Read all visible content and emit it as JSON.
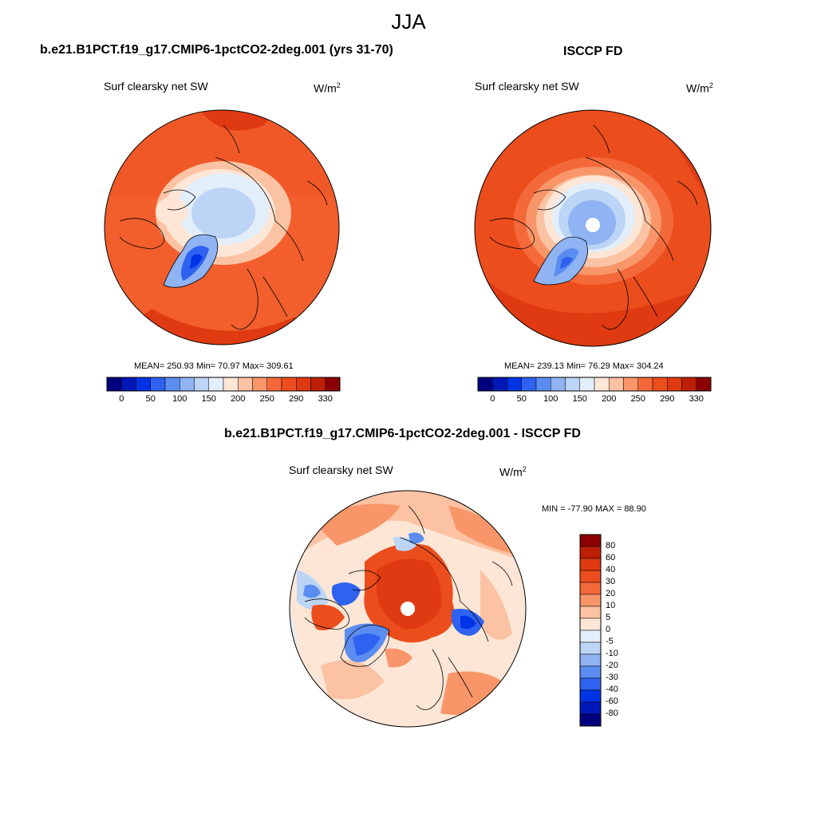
{
  "figure": {
    "title": "JJA",
    "units_base": "W/m",
    "units_exp": "2"
  },
  "colors": {
    "abs_scale": [
      "#00007e",
      "#0018b8",
      "#0033e6",
      "#2f62f0",
      "#5b8df0",
      "#8fb3f3",
      "#bcd5f6",
      "#e3eefb",
      "#fde6d6",
      "#fbc3a3",
      "#f8966a",
      "#f4693a",
      "#ec4d1c",
      "#df3a12",
      "#bd1f04",
      "#8b0000"
    ],
    "diff_scale": [
      "#00007e",
      "#0018b8",
      "#0033e6",
      "#2f62f0",
      "#5b8df0",
      "#8fb3f3",
      "#bcd5f6",
      "#e3eefb",
      "#fde6d6",
      "#fbc3a3",
      "#f8966a",
      "#f4693a",
      "#ec4d1c",
      "#df3a12",
      "#bd1f04",
      "#8b0000"
    ]
  },
  "panels": [
    {
      "title": "b.e21.B1PCT.f19_g17.CMIP6-1pctCO2-2deg.001 (yrs 31-70)",
      "variable": "Surf clearsky net SW",
      "stats": "MEAN= 250.93  Min=  70.97  Max= 309.61"
    },
    {
      "title": "ISCCP FD",
      "variable": "Surf clearsky net SW",
      "stats": "MEAN= 239.13  Min=  76.29  Max= 304.24"
    },
    {
      "title": "b.e21.B1PCT.f19_g17.CMIP6-1pctCO2-2deg.001 - ISCCP FD",
      "variable": "Surf clearsky net SW",
      "stats": "MIN = -77.90 MAX =  88.90"
    }
  ],
  "chart_data": [
    {
      "type": "heatmap",
      "projection": "north-polar-stereographic",
      "title": "b.e21.B1PCT.f19_g17.CMIP6-1pctCO2-2deg.001 (yrs 31-70)",
      "variable": "Surf clearsky net SW",
      "units": "W/m2",
      "mean": 250.93,
      "min": 70.97,
      "max": 309.61,
      "colorbar_levels": [
        "0",
        "50",
        "100",
        "150",
        "200",
        "250",
        "290",
        "330"
      ]
    },
    {
      "type": "heatmap",
      "projection": "north-polar-stereographic",
      "title": "ISCCP FD",
      "variable": "Surf clearsky net SW",
      "units": "W/m2",
      "mean": 239.13,
      "min": 76.29,
      "max": 304.24,
      "colorbar_levels": [
        "0",
        "50",
        "100",
        "150",
        "200",
        "250",
        "290",
        "330"
      ]
    },
    {
      "type": "heatmap",
      "projection": "north-polar-stereographic",
      "title": "b.e21.B1PCT.f19_g17.CMIP6-1pctCO2-2deg.001 - ISCCP FD",
      "variable": "Surf clearsky net SW",
      "units": "W/m2",
      "min": -77.9,
      "max": 88.9,
      "colorbar_levels": [
        "80",
        "60",
        "40",
        "30",
        "20",
        "10",
        "5",
        "0",
        "-5",
        "-10",
        "-20",
        "-30",
        "-40",
        "-60",
        "-80"
      ]
    }
  ]
}
